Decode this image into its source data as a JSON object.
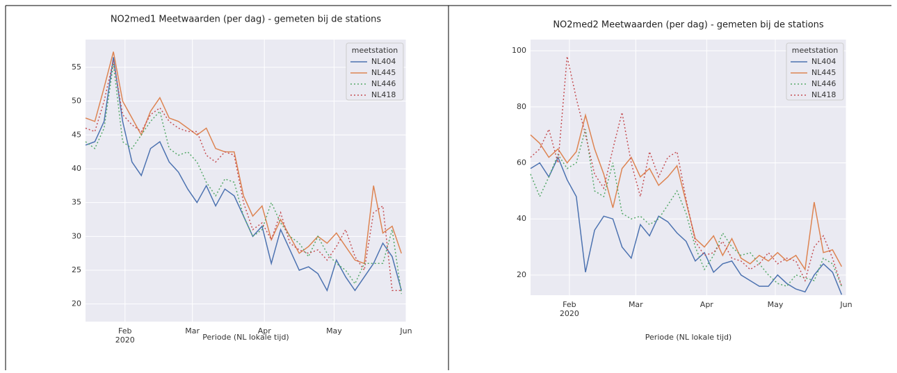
{
  "chart_data": [
    {
      "type": "line",
      "title": "NO2med1 Meetwaarden (per dag) - gemeten bij de stations",
      "x_label": "Periode (NL lokale tijd)",
      "legend_title": "meetstation",
      "legend": "upper right",
      "grid": true,
      "x": [
        0,
        4,
        8,
        12,
        16,
        20,
        24,
        28,
        32,
        36,
        40,
        44,
        48,
        52,
        56,
        60,
        64,
        68,
        72,
        76,
        80,
        84,
        88,
        92,
        96,
        100,
        104,
        108,
        112,
        116,
        120,
        124,
        128,
        132,
        136
      ],
      "xlim": [
        0,
        138
      ],
      "xticks": [
        {
          "value": 17,
          "label": "Feb\n2020"
        },
        {
          "value": 46,
          "label": "Mar"
        },
        {
          "value": 77,
          "label": "Apr"
        },
        {
          "value": 107,
          "label": "May"
        },
        {
          "value": 138,
          "label": "Jun"
        }
      ],
      "ylim": [
        17.4,
        59.1
      ],
      "yticks": [
        20,
        25,
        30,
        35,
        40,
        45,
        50,
        55
      ],
      "series": [
        {
          "name": "NL404",
          "color": "#4c72b0",
          "linestyle": "solid",
          "values": [
            43.5,
            44,
            47,
            56.5,
            47,
            41,
            39,
            43,
            44,
            41,
            39.5,
            37,
            35,
            37.5,
            34.5,
            37,
            36,
            33,
            30,
            31.5,
            26,
            31,
            28,
            25,
            25.5,
            24.5,
            22,
            26.5,
            24,
            22,
            24,
            26,
            29,
            27,
            22
          ]
        },
        {
          "name": "NL445",
          "color": "#dd8452",
          "linestyle": "solid",
          "values": [
            47.5,
            47,
            52,
            57.3,
            50,
            47.5,
            45,
            48.5,
            50.5,
            47.5,
            47,
            46,
            45,
            46,
            43,
            42.5,
            42.5,
            36,
            33,
            34.5,
            29.5,
            32.5,
            30,
            27.5,
            28.5,
            30,
            29,
            30.5,
            28.5,
            26.5,
            26,
            37.5,
            30.5,
            31.5,
            27.5
          ]
        },
        {
          "name": "NL446",
          "color": "#55a868",
          "linestyle": "dotted",
          "values": [
            44,
            43,
            46,
            55.5,
            44,
            43,
            45,
            47,
            48.5,
            43,
            42,
            42.5,
            41,
            38,
            36,
            38.5,
            38,
            33,
            30,
            31,
            35,
            32,
            30,
            29,
            27,
            30,
            27.5,
            26,
            25,
            23,
            26,
            26,
            26,
            31,
            21.5
          ]
        },
        {
          "name": "NL418",
          "color": "#c44e52",
          "linestyle": "dotted",
          "values": [
            46,
            45.5,
            50,
            56,
            48,
            46.5,
            45.5,
            48,
            49,
            47,
            46,
            45.5,
            45.5,
            42,
            41,
            42.5,
            42,
            35,
            31,
            32,
            29.5,
            33.5,
            29,
            28,
            27.5,
            28,
            26.5,
            28.5,
            31,
            27,
            25,
            33.5,
            34.5,
            22,
            22
          ]
        }
      ]
    },
    {
      "type": "line",
      "title": "NO2med2 Meetwaarden (per dag) - gemeten bij de stations",
      "x_label": "Periode (NL lokale tijd)",
      "legend_title": "meetstation",
      "legend": "upper right",
      "grid": true,
      "x": [
        0,
        4,
        8,
        12,
        16,
        20,
        24,
        28,
        32,
        36,
        40,
        44,
        48,
        52,
        56,
        60,
        64,
        68,
        72,
        76,
        80,
        84,
        88,
        92,
        96,
        100,
        104,
        108,
        112,
        116,
        120,
        124,
        128,
        132,
        136
      ],
      "xlim": [
        0,
        138
      ],
      "xticks": [
        {
          "value": 17,
          "label": "Feb\n2020"
        },
        {
          "value": 46,
          "label": "Mar"
        },
        {
          "value": 77,
          "label": "Apr"
        },
        {
          "value": 107,
          "label": "May"
        },
        {
          "value": 138,
          "label": "Jun"
        }
      ],
      "ylim": [
        12.8,
        104
      ],
      "yticks": [
        20,
        40,
        60,
        80,
        100
      ],
      "series": [
        {
          "name": "NL404",
          "color": "#4c72b0",
          "linestyle": "solid",
          "values": [
            58,
            60,
            55,
            62,
            54,
            48,
            21,
            36,
            41,
            40,
            30,
            26,
            38,
            34,
            41,
            39,
            35,
            32,
            25,
            28,
            21,
            24,
            25,
            20,
            18,
            16,
            16,
            20,
            17,
            15,
            14,
            20,
            24,
            21,
            13
          ]
        },
        {
          "name": "NL445",
          "color": "#dd8452",
          "linestyle": "solid",
          "values": [
            70,
            67,
            62,
            65,
            60,
            64,
            77,
            65,
            56,
            44,
            58,
            62,
            55,
            58,
            52,
            55,
            59,
            46,
            33,
            30,
            34,
            27,
            33,
            26,
            24,
            27,
            25,
            28,
            25,
            27,
            22,
            46,
            28,
            29,
            23
          ]
        },
        {
          "name": "NL446",
          "color": "#55a868",
          "linestyle": "dotted",
          "values": [
            56,
            48,
            55,
            63,
            58,
            60,
            72,
            50,
            48,
            60,
            42,
            40,
            41,
            38,
            40,
            45,
            50,
            42,
            30,
            22,
            27,
            35,
            30,
            27,
            28,
            24,
            20,
            17,
            16,
            20,
            19,
            18,
            26,
            24,
            16
          ]
        },
        {
          "name": "NL418",
          "color": "#c44e52",
          "linestyle": "dotted",
          "values": [
            62,
            65,
            72,
            60,
            98,
            83,
            70,
            56,
            51,
            65,
            78,
            60,
            48,
            64,
            55,
            62,
            64,
            47,
            32,
            27,
            28,
            32,
            26,
            25,
            22,
            24,
            28,
            24,
            26,
            25,
            18,
            30,
            34,
            26,
            16
          ]
        }
      ]
    }
  ]
}
